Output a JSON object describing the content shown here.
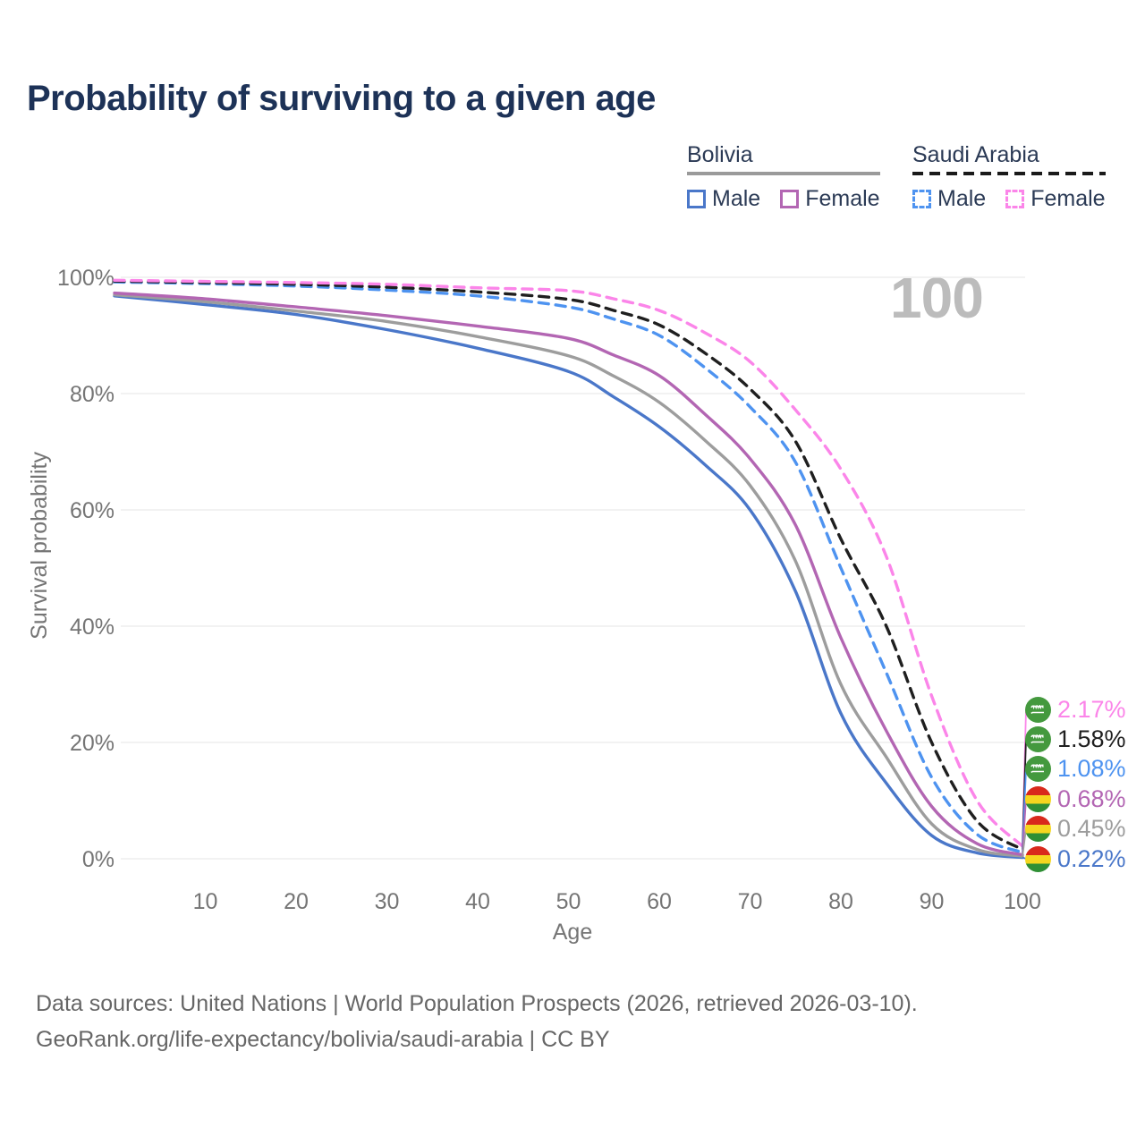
{
  "title": "Probability of surviving to a given age",
  "watermark": "100",
  "legend": {
    "groups": [
      {
        "label": "Bolivia",
        "line_style": "solid",
        "items": [
          {
            "label": "Male",
            "series": "Bolivia Male"
          },
          {
            "label": "Female",
            "series": "Bolivia Female"
          }
        ]
      },
      {
        "label": "Saudi Arabia",
        "line_style": "dashed",
        "items": [
          {
            "label": "Male",
            "series": "Saudi Arabia Male"
          },
          {
            "label": "Female",
            "series": "Saudi Arabia Female"
          }
        ]
      }
    ]
  },
  "chart_data": {
    "type": "line",
    "title": "Probability of surviving to a given age",
    "xlabel": "Age",
    "ylabel": "Survival probability",
    "xlim": [
      0,
      100
    ],
    "ylim": [
      0,
      100
    ],
    "grid": "horizontal",
    "legend_position": "top-right",
    "x_ticks": [
      10,
      20,
      30,
      40,
      50,
      60,
      70,
      80,
      90,
      100
    ],
    "y_ticks": [
      {
        "value": 0,
        "label": "0%"
      },
      {
        "value": 20,
        "label": "20%"
      },
      {
        "value": 40,
        "label": "40%"
      },
      {
        "value": 60,
        "label": "60%"
      },
      {
        "value": 80,
        "label": "80%"
      },
      {
        "value": 100,
        "label": "100%"
      }
    ],
    "x": [
      0,
      10,
      20,
      30,
      40,
      50,
      55,
      60,
      65,
      70,
      75,
      80,
      85,
      90,
      95,
      100
    ],
    "series": [
      {
        "name": "Bolivia Male",
        "country": "Bolivia",
        "sex": "Male",
        "style": "solid",
        "color": "#4a77c9",
        "flag": "bolivia",
        "values": [
          96.8,
          95.3,
          93.6,
          91.0,
          87.8,
          83.8,
          79.4,
          74.3,
          67.8,
          60.0,
          46.0,
          25.0,
          13.0,
          4.0,
          1.0,
          0.22
        ],
        "end_label": "0.22%"
      },
      {
        "name": "Bolivia Both sexes",
        "country": "Bolivia",
        "sex": "Both",
        "style": "solid",
        "color": "#9d9d9d",
        "flag": "bolivia",
        "values": [
          97.0,
          95.8,
          94.2,
          92.4,
          89.8,
          86.5,
          83.0,
          78.5,
          72.0,
          64.2,
          51.2,
          30.0,
          17.5,
          6.0,
          1.6,
          0.45
        ],
        "end_label": "0.45%"
      },
      {
        "name": "Bolivia Female",
        "country": "Bolivia",
        "sex": "Female",
        "style": "solid",
        "color": "#b366b3",
        "flag": "bolivia",
        "values": [
          97.3,
          96.3,
          94.9,
          93.4,
          91.6,
          89.5,
          86.6,
          83.1,
          76.5,
          68.8,
          57.4,
          38.0,
          22.0,
          9.0,
          2.6,
          0.68
        ],
        "end_label": "0.68%"
      },
      {
        "name": "Saudi Arabia Male",
        "country": "Saudi Arabia",
        "sex": "Male",
        "style": "dashed",
        "color": "#4e93f0",
        "flag": "saudi-arabia",
        "values": [
          99.2,
          98.9,
          98.5,
          97.8,
          96.8,
          94.9,
          92.8,
          90.0,
          84.5,
          77.7,
          68.2,
          50.0,
          32.0,
          14.0,
          4.2,
          1.08
        ],
        "end_label": "1.08%"
      },
      {
        "name": "Saudi Arabia Both sexes",
        "country": "Saudi Arabia",
        "sex": "Both",
        "style": "dashed",
        "color": "#1f1f1f",
        "flag": "saudi-arabia",
        "values": [
          99.35,
          99.1,
          98.8,
          98.3,
          97.5,
          96.2,
          94.3,
          91.8,
          87.0,
          80.8,
          71.8,
          55.0,
          40.0,
          20.0,
          6.5,
          1.58
        ],
        "end_label": "1.58%"
      },
      {
        "name": "Saudi Arabia Female",
        "country": "Saudi Arabia",
        "sex": "Female",
        "style": "dashed",
        "color": "#fb85e9",
        "flag": "saudi-arabia",
        "values": [
          99.5,
          99.3,
          99.1,
          98.8,
          98.2,
          97.7,
          96.3,
          94.3,
          90.5,
          85.5,
          77.2,
          67.0,
          52.0,
          28.0,
          10.0,
          2.17
        ],
        "end_label": "2.17%"
      }
    ]
  },
  "flag_colors": {
    "bolivia": {
      "red": "#d9291c",
      "yellow": "#f5d61f",
      "green": "#2f8f35"
    },
    "saudi_arabia": {
      "green": "#44993e",
      "script": "#ffffff"
    }
  },
  "footer": {
    "line1": "Data sources: United Nations | World Population Prospects (2026, retrieved 2026-03-10).",
    "line2": "GeoRank.org/life-expectancy/bolivia/saudi-arabia | CC BY"
  }
}
